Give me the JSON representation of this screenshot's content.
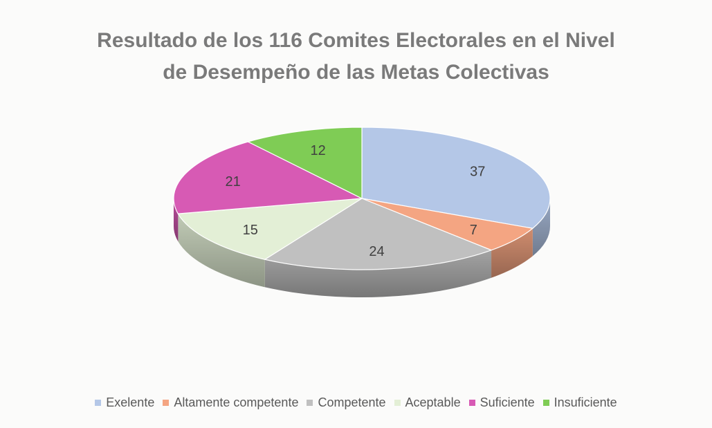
{
  "chart_data": {
    "type": "pie",
    "title_lines": [
      "Resultado de los 116 Comites Electorales en el Nivel",
      "de Desempeño de las Metas Colectivas"
    ],
    "categories": [
      "Exelente",
      "Altamente competente",
      "Competente",
      "Aceptable",
      "Suficiente",
      "Insuficiente"
    ],
    "values": [
      37,
      7,
      24,
      15,
      21,
      12
    ],
    "colors": [
      "#b4c7e7",
      "#f4a582",
      "#c0c0c0",
      "#e3efd6",
      "#d75ab4",
      "#7fcc55"
    ],
    "legend_position": "bottom",
    "three_d": true
  }
}
